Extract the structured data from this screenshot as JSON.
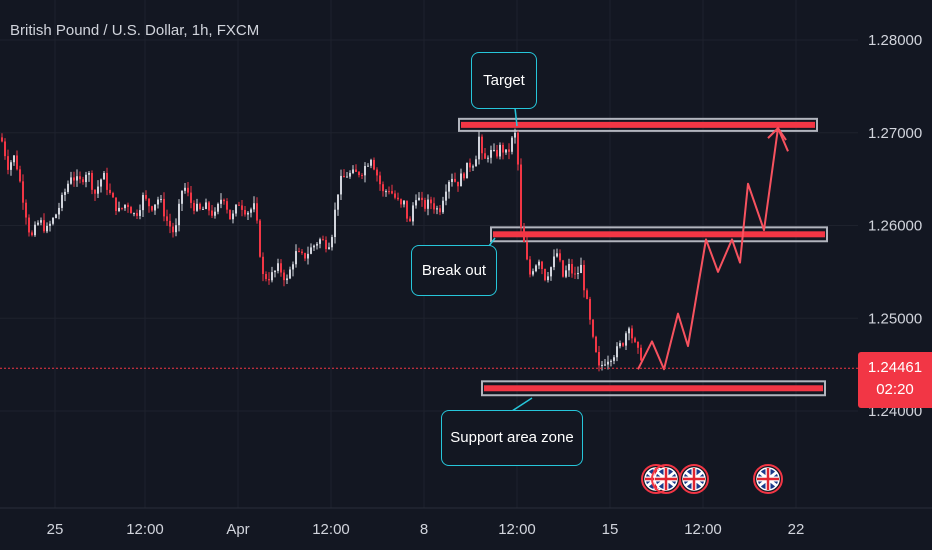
{
  "header": {
    "title": "British Pound / U.S. Dollar, 1h, FXCM"
  },
  "price_tag": {
    "price": "1.24461",
    "countdown": "02:20"
  },
  "annotations": {
    "target": "Target",
    "breakout": "Break out",
    "support": "Support area zone"
  },
  "colors": {
    "background": "#131722",
    "up": "#d1d4dc",
    "down": "#f23645",
    "zone": "#f23645",
    "zone_border": "#b2b5be",
    "projection": "#f7525f",
    "callout_border": "#26c6da"
  },
  "chart_data": {
    "type": "candlestick",
    "y_axis": {
      "ticks": [
        1.28,
        1.27,
        1.26,
        1.25,
        1.24
      ],
      "tick_labels": [
        "1.28000",
        "1.27000",
        "1.26000",
        "1.25000",
        "1.24000"
      ],
      "side": "right"
    },
    "x_axis": {
      "tick_labels": [
        "25",
        "12:00",
        "Apr",
        "12:00",
        "8",
        "12:00",
        "15",
        "12:00",
        "22"
      ]
    },
    "current_price": 1.24461,
    "close_path": [
      [
        0,
        1.2695
      ],
      [
        7,
        1.2665
      ],
      [
        14,
        1.2675
      ],
      [
        22,
        1.263
      ],
      [
        30,
        1.2585
      ],
      [
        38,
        1.2605
      ],
      [
        46,
        1.2595
      ],
      [
        54,
        1.261
      ],
      [
        62,
        1.263
      ],
      [
        70,
        1.2655
      ],
      [
        78,
        1.2645
      ],
      [
        86,
        1.266
      ],
      [
        94,
        1.2635
      ],
      [
        102,
        1.2655
      ],
      [
        110,
        1.263
      ],
      [
        118,
        1.2615
      ],
      [
        126,
        1.2625
      ],
      [
        134,
        1.261
      ],
      [
        142,
        1.263
      ],
      [
        150,
        1.262
      ],
      [
        158,
        1.263
      ],
      [
        166,
        1.2605
      ],
      [
        174,
        1.259
      ],
      [
        182,
        1.2645
      ],
      [
        190,
        1.2625
      ],
      [
        198,
        1.2615
      ],
      [
        206,
        1.262
      ],
      [
        214,
        1.261
      ],
      [
        222,
        1.2635
      ],
      [
        230,
        1.2605
      ],
      [
        238,
        1.2625
      ],
      [
        246,
        1.2615
      ],
      [
        254,
        1.262
      ],
      [
        258,
        1.258
      ],
      [
        262,
        1.2545
      ],
      [
        270,
        1.2545
      ],
      [
        278,
        1.2555
      ],
      [
        286,
        1.254
      ],
      [
        294,
        1.257
      ],
      [
        302,
        1.2565
      ],
      [
        310,
        1.2575
      ],
      [
        318,
        1.2585
      ],
      [
        326,
        1.258
      ],
      [
        330,
        1.2585
      ],
      [
        334,
        1.2615
      ],
      [
        338,
        1.2645
      ],
      [
        346,
        1.2655
      ],
      [
        354,
        1.2655
      ],
      [
        362,
        1.266
      ],
      [
        370,
        1.2675
      ],
      [
        376,
        1.2655
      ],
      [
        382,
        1.2635
      ],
      [
        388,
        1.264
      ],
      [
        394,
        1.263
      ],
      [
        400,
        1.262
      ],
      [
        404,
        1.2625
      ],
      [
        408,
        1.2595
      ],
      [
        414,
        1.2635
      ],
      [
        422,
        1.262
      ],
      [
        430,
        1.2625
      ],
      [
        438,
        1.2615
      ],
      [
        444,
        1.264
      ],
      [
        450,
        1.2655
      ],
      [
        456,
        1.2645
      ],
      [
        462,
        1.2655
      ],
      [
        468,
        1.2665
      ],
      [
        474,
        1.267
      ],
      [
        478,
        1.2695
      ],
      [
        482,
        1.2665
      ],
      [
        488,
        1.268
      ],
      [
        494,
        1.2675
      ],
      [
        500,
        1.2685
      ],
      [
        506,
        1.2675
      ],
      [
        512,
        1.2695
      ],
      [
        516,
        1.27
      ],
      [
        518,
        1.263
      ],
      [
        520,
        1.2595
      ],
      [
        524,
        1.2575
      ],
      [
        528,
        1.2545
      ],
      [
        532,
        1.2555
      ],
      [
        538,
        1.2565
      ],
      [
        544,
        1.2545
      ],
      [
        550,
        1.2555
      ],
      [
        556,
        1.257
      ],
      [
        562,
        1.2545
      ],
      [
        568,
        1.2555
      ],
      [
        574,
        1.2545
      ],
      [
        580,
        1.2555
      ],
      [
        586,
        1.2515
      ],
      [
        592,
        1.2475
      ],
      [
        598,
        1.2445
      ],
      [
        604,
        1.2455
      ],
      [
        610,
        1.246
      ],
      [
        616,
        1.2465
      ],
      [
        622,
        1.2475
      ],
      [
        628,
        1.2495
      ],
      [
        632,
        1.2475
      ],
      [
        638,
        1.246
      ]
    ],
    "zones": [
      {
        "name": "target-zone",
        "low": 1.2702,
        "high": 1.2715
      },
      {
        "name": "breakout-zone",
        "low": 1.2583,
        "high": 1.2598
      },
      {
        "name": "support-zone",
        "low": 1.2417,
        "high": 1.2432
      }
    ],
    "projection_path": [
      [
        638,
        1.2445
      ],
      [
        652,
        1.2475
      ],
      [
        664,
        1.2445
      ],
      [
        678,
        1.2505
      ],
      [
        688,
        1.247
      ],
      [
        706,
        1.2585
      ],
      [
        718,
        1.255
      ],
      [
        732,
        1.2585
      ],
      [
        740,
        1.256
      ],
      [
        748,
        1.2645
      ],
      [
        764,
        1.2595
      ],
      [
        778,
        1.2705
      ],
      [
        788,
        1.268
      ]
    ]
  }
}
